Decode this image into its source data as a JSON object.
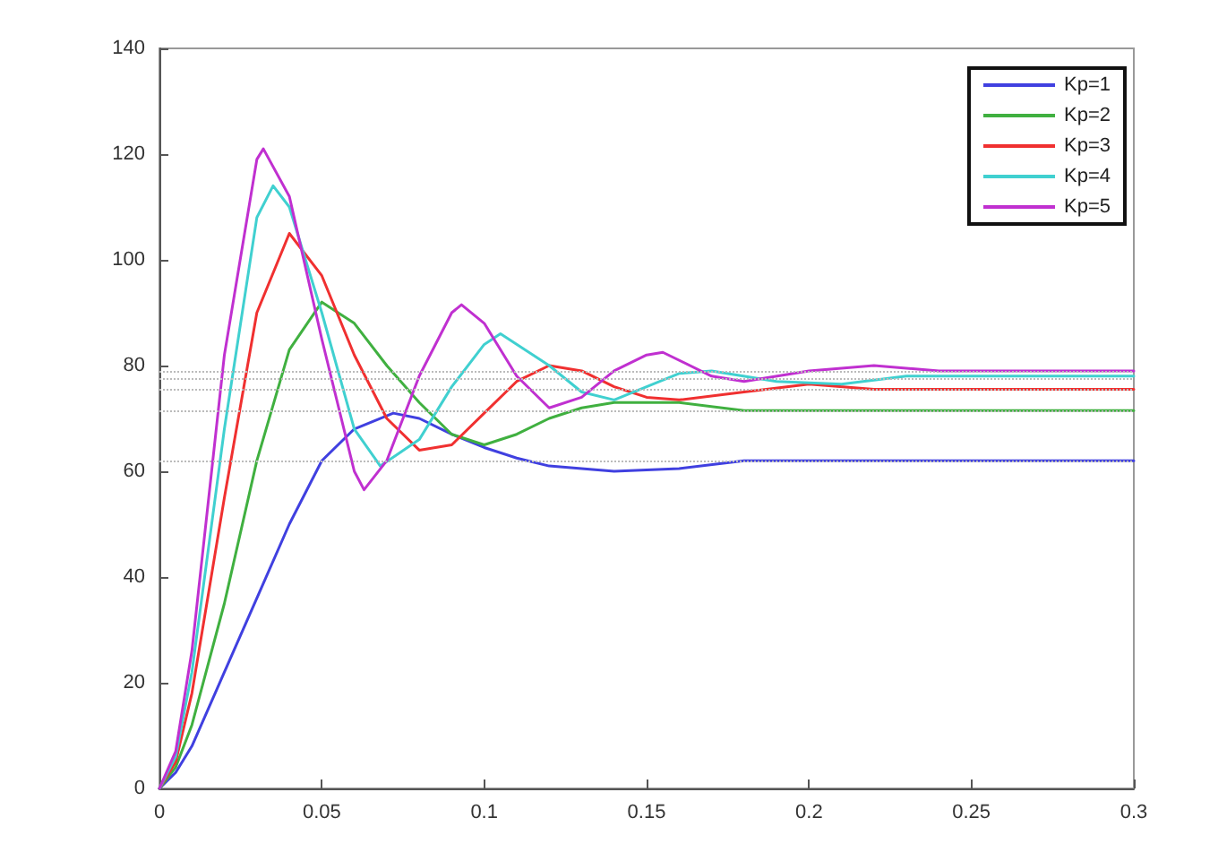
{
  "chart_data": {
    "type": "line",
    "xlim": [
      0,
      0.3
    ],
    "xticks": [
      0,
      0.05,
      0.1,
      0.15,
      0.2,
      0.25,
      0.3
    ],
    "ylim": [
      0,
      140
    ],
    "yticks": [
      0,
      20,
      40,
      60,
      80,
      100,
      120,
      140
    ],
    "grid": false,
    "legend": "top right",
    "marker": "none",
    "line_style": "solid",
    "series": [
      {
        "name": "Kp=1",
        "color": "#4040e0",
        "x": [
          0,
          0.005,
          0.01,
          0.02,
          0.03,
          0.04,
          0.05,
          0.06,
          0.072,
          0.08,
          0.09,
          0.1,
          0.11,
          0.12,
          0.14,
          0.16,
          0.18,
          0.2,
          0.25,
          0.3
        ],
        "values": [
          0,
          3,
          8,
          22,
          36,
          50,
          62,
          68,
          71,
          70,
          67,
          64.5,
          62.5,
          61,
          60,
          60.5,
          62,
          62,
          62,
          62
        ]
      },
      {
        "name": "Kp=2",
        "color": "#40b040",
        "x": [
          0,
          0.005,
          0.01,
          0.02,
          0.03,
          0.04,
          0.05,
          0.06,
          0.07,
          0.08,
          0.09,
          0.1,
          0.11,
          0.12,
          0.13,
          0.14,
          0.16,
          0.18,
          0.2,
          0.25,
          0.3
        ],
        "values": [
          0,
          4,
          12,
          35,
          62,
          83,
          92,
          88,
          80,
          73,
          67,
          65,
          67,
          70,
          72,
          73,
          73,
          71.5,
          71.5,
          71.5,
          71.5
        ]
      },
      {
        "name": "Kp=3",
        "color": "#f03030",
        "x": [
          0,
          0.005,
          0.01,
          0.02,
          0.03,
          0.04,
          0.05,
          0.06,
          0.07,
          0.08,
          0.09,
          0.1,
          0.11,
          0.12,
          0.13,
          0.14,
          0.15,
          0.16,
          0.18,
          0.2,
          0.22,
          0.25,
          0.3
        ],
        "values": [
          0,
          5,
          18,
          55,
          90,
          105,
          97,
          82,
          70,
          64,
          65,
          71,
          77,
          80,
          79,
          76,
          74,
          73.5,
          75,
          76.5,
          75.5,
          75.5,
          75.5
        ]
      },
      {
        "name": "Kp=4",
        "color": "#40d0d0",
        "x": [
          0,
          0.005,
          0.01,
          0.02,
          0.03,
          0.035,
          0.04,
          0.05,
          0.06,
          0.068,
          0.08,
          0.09,
          0.1,
          0.105,
          0.12,
          0.13,
          0.14,
          0.15,
          0.16,
          0.17,
          0.19,
          0.21,
          0.23,
          0.25,
          0.3
        ],
        "values": [
          0,
          6,
          22,
          68,
          108,
          114,
          110,
          90,
          68,
          61,
          66,
          76,
          84,
          86,
          80,
          75,
          73.5,
          76,
          78.5,
          79,
          77,
          76.5,
          78,
          78,
          78
        ]
      },
      {
        "name": "Kp=5",
        "color": "#c030d0",
        "x": [
          0,
          0.005,
          0.01,
          0.02,
          0.03,
          0.032,
          0.04,
          0.05,
          0.06,
          0.063,
          0.07,
          0.08,
          0.09,
          0.093,
          0.1,
          0.11,
          0.12,
          0.13,
          0.14,
          0.15,
          0.155,
          0.17,
          0.18,
          0.2,
          0.22,
          0.24,
          0.3
        ],
        "values": [
          0,
          7,
          26,
          82,
          119,
          121,
          112,
          85,
          60,
          56.5,
          62,
          78,
          90,
          91.5,
          88,
          78,
          72,
          74,
          79,
          82,
          82.5,
          78,
          77,
          79,
          80,
          79,
          79
        ]
      }
    ],
    "ref_lines": [
      {
        "axis": "y",
        "value": 62,
        "color": "#bbbbbb",
        "line_style": "dotted"
      },
      {
        "axis": "y",
        "value": 71.5,
        "color": "#bbbbbb",
        "line_style": "dotted"
      },
      {
        "axis": "y",
        "value": 75.6,
        "color": "#bbbbbb",
        "line_style": "dotted"
      },
      {
        "axis": "y",
        "value": 77.6,
        "color": "#bbbbbb",
        "line_style": "dotted"
      },
      {
        "axis": "y",
        "value": 79,
        "color": "#bbbbbb",
        "line_style": "dotted"
      }
    ]
  }
}
